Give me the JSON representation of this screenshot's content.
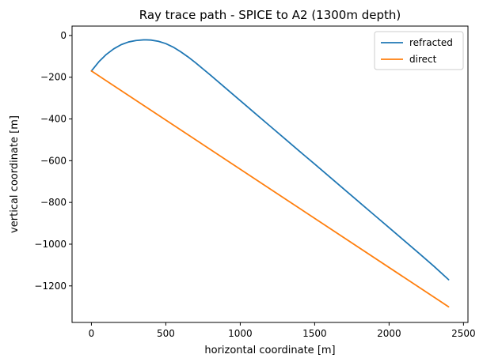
{
  "chart_data": {
    "type": "line",
    "title": "Ray trace path - SPICE to A2 (1300m depth)",
    "xlabel": "horizontal coordinate [m]",
    "ylabel": "vertical coordinate [m]",
    "xlim": [
      -130,
      2530
    ],
    "ylim": [
      -1375,
      45
    ],
    "xticks": [
      0,
      500,
      1000,
      1500,
      2000,
      2500
    ],
    "yticks": [
      0,
      -200,
      -400,
      -600,
      -800,
      -1000,
      -1200
    ],
    "xtick_labels": [
      "0",
      "500",
      "1000",
      "1500",
      "2000",
      "2500"
    ],
    "ytick_labels": [
      "0",
      "−200",
      "−400",
      "−600",
      "−800",
      "−1000",
      "−1200"
    ],
    "grid": false,
    "legend_position": "top-right",
    "series": [
      {
        "name": "refracted",
        "color": "#1f77b4",
        "x": [
          0,
          50,
          100,
          150,
          200,
          250,
          300,
          350,
          370,
          400,
          450,
          500,
          550,
          600,
          650,
          700,
          800,
          900,
          1000,
          1100,
          1200,
          1300,
          1400,
          1500,
          1600,
          1700,
          1800,
          1900,
          2000,
          2100,
          2200,
          2300,
          2400
        ],
        "y": [
          -170,
          -126,
          -91,
          -64,
          -44,
          -31,
          -24,
          -21,
          -21,
          -22,
          -28,
          -39,
          -56,
          -78,
          -103,
          -131,
          -190,
          -251,
          -312,
          -373,
          -434,
          -495,
          -556,
          -616,
          -677,
          -738,
          -799,
          -860,
          -921,
          -982,
          -1043,
          -1105,
          -1170
        ]
      },
      {
        "name": "direct",
        "color": "#ff7f0e",
        "x": [
          0,
          2400
        ],
        "y": [
          -170,
          -1300
        ]
      }
    ]
  }
}
